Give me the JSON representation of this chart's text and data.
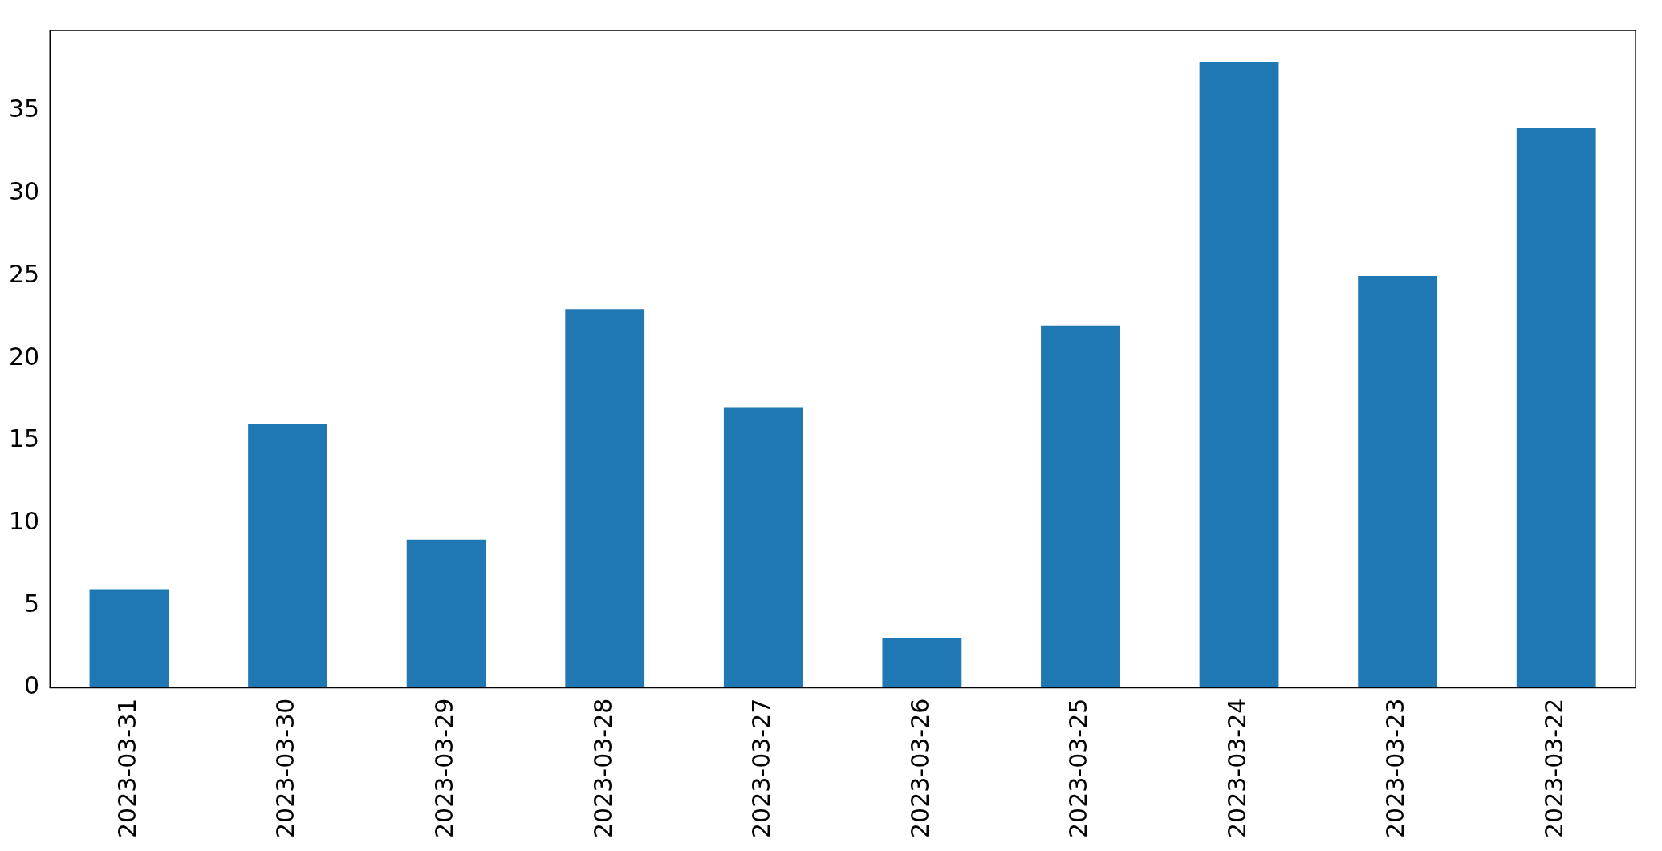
{
  "chart_data": {
    "type": "bar",
    "categories": [
      "2023-03-31",
      "2023-03-30",
      "2023-03-29",
      "2023-03-28",
      "2023-03-27",
      "2023-03-26",
      "2023-03-25",
      "2023-03-24",
      "2023-03-23",
      "2023-03-22"
    ],
    "values": [
      6,
      16,
      9,
      23,
      17,
      3,
      22,
      38,
      25,
      34
    ],
    "color": "#1f77b4",
    "ylim": [
      0,
      39.9
    ],
    "yticks": [
      0,
      5,
      10,
      15,
      20,
      25,
      30,
      35
    ],
    "grid": false,
    "legend": false
  }
}
